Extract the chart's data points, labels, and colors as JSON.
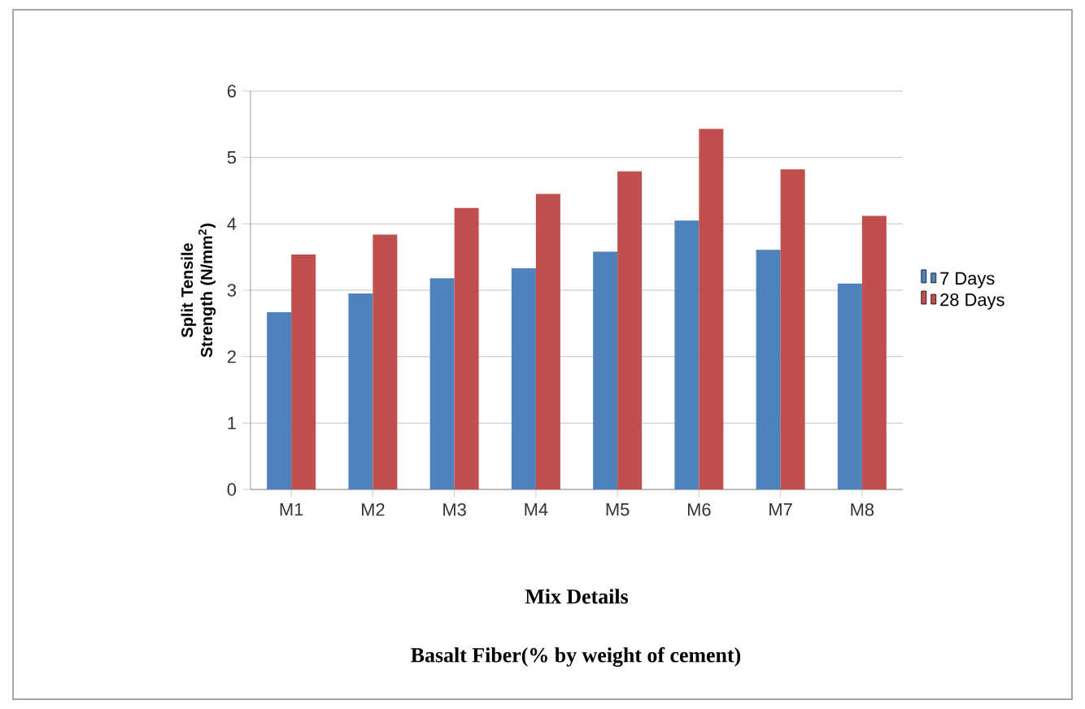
{
  "chart_data": {
    "type": "bar",
    "xlabel": "Mix Details",
    "ylabel": "Split Tensile Strength (N/mm$^{2}$)",
    "annotations": [
      "Basalt Fiber(% by weight of cement)"
    ],
    "categories": [
      "M1",
      "M2",
      "M3",
      "M4",
      "M5",
      "M6",
      "M7",
      "M8"
    ],
    "series": [
      {
        "name": "7 Days",
        "color": "#4f81bd",
        "values": [
          2.67,
          2.95,
          3.18,
          3.33,
          3.58,
          4.05,
          3.61,
          3.1
        ]
      },
      {
        "name": "28 Days",
        "color": "#c0504d",
        "values": [
          3.54,
          3.84,
          4.24,
          4.45,
          4.79,
          5.43,
          4.82,
          4.12
        ]
      }
    ],
    "ylim": [
      0,
      6
    ],
    "yticks": [
      0,
      1,
      2,
      3,
      4,
      5,
      6
    ],
    "grid": "y",
    "legend": "right"
  }
}
